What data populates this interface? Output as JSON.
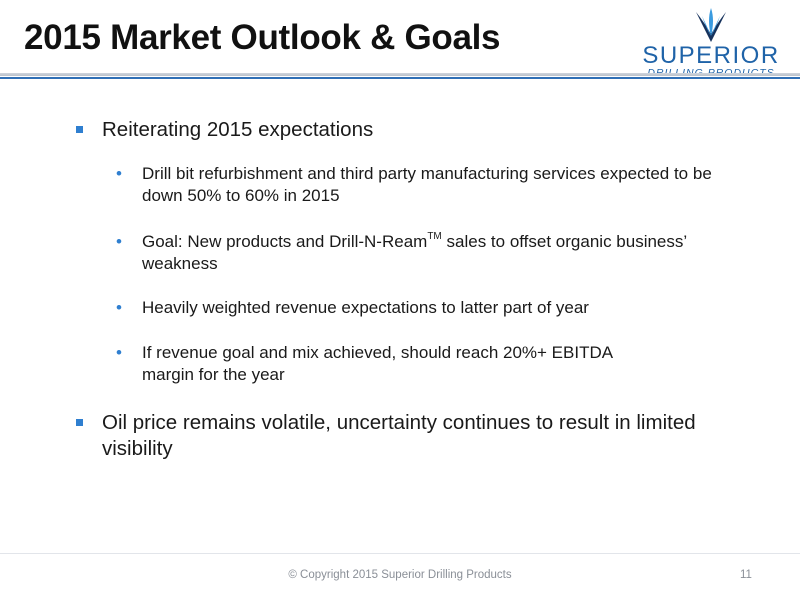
{
  "header": {
    "title": "2015 Market Outlook & Goals"
  },
  "logo": {
    "wordmark": "SUPERIOR",
    "subtitle": "DRILLING PRODUCTS",
    "colors": {
      "dark": "#16325c",
      "light": "#3a9be0",
      "text": "#1f63a8"
    }
  },
  "bullets": [
    {
      "text": "Reiterating 2015 expectations",
      "sub": [
        {
          "text": "Drill bit refurbishment and third party manufacturing services expected to be down 50% to 60% in 2015"
        },
        {
          "before": "Goal: New products and Drill-N-Ream",
          "sup": "TM",
          "after": " sales to offset organic business’ weakness"
        },
        {
          "text": "Heavily weighted revenue expectations to latter part of year"
        },
        {
          "text": "If revenue goal and mix achieved, should reach 20%+ EBITDA margin for the year"
        }
      ]
    },
    {
      "text": "Oil price remains volatile, uncertainty continues to result in limited visibility"
    }
  ],
  "footer": {
    "copyright": "© Copyright 2015 Superior Drilling Products",
    "page_number": "11"
  },
  "colors": {
    "accent": "#2f7fd0",
    "rule_blue": "#2f6fb6",
    "rule_gray": "#c4cad3"
  }
}
